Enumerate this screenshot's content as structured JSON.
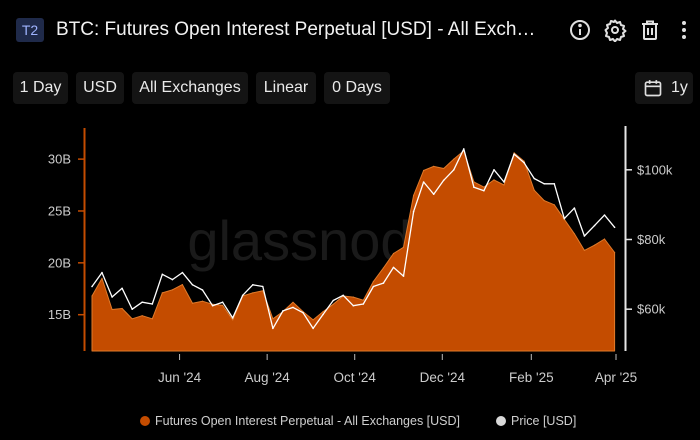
{
  "header": {
    "badge": "T2",
    "title": "BTC: Futures Open Interest Perpetual [USD] - All Exchanges",
    "icons": [
      "info-icon",
      "gear-icon",
      "trash-icon",
      "more-icon"
    ]
  },
  "toolbar": {
    "resolution": "1 Day",
    "currency": "USD",
    "exchange": "All Exchanges",
    "scale": "Linear",
    "sma": "0 Days",
    "range": "1y"
  },
  "watermark": "glassnode",
  "colors": {
    "oi": "#c44c00",
    "oi_edge": "#e07a2a",
    "price": "#ffffff",
    "bg": "#000000",
    "axis_text": "#cccccc"
  },
  "chart_data": {
    "type": "area",
    "title": "BTC: Futures Open Interest Perpetual [USD] - All Exchanges",
    "x_ticks": [
      "Jun '24",
      "Aug '24",
      "Oct '24",
      "Dec '24",
      "Feb '25",
      "Apr '25"
    ],
    "x_tick_dates": [
      "2024-06-01",
      "2024-08-01",
      "2024-10-01",
      "2024-12-01",
      "2025-02-01",
      "2025-04-01"
    ],
    "x_range": [
      "2024-04-01",
      "2025-04-01"
    ],
    "left_axis": {
      "ticks": [
        "15B",
        "20B",
        "25B",
        "30B"
      ],
      "tick_values": [
        15,
        20,
        25,
        30
      ],
      "range": [
        11.5,
        33
      ]
    },
    "right_axis": {
      "ticks": [
        "$60k",
        "$80k",
        "$100k"
      ],
      "tick_values": [
        60,
        80,
        100
      ],
      "range": [
        48,
        112
      ]
    },
    "grid": false,
    "legend_position": "bottom",
    "series": [
      {
        "name": "Futures Open Interest Perpetual - All Exchanges [USD]",
        "axis": "left",
        "unit": "B",
        "points": [
          [
            "2024-04-01",
            16.8
          ],
          [
            "2024-04-08",
            18.5
          ],
          [
            "2024-04-15",
            15.5
          ],
          [
            "2024-04-22",
            15.6
          ],
          [
            "2024-04-29",
            14.6
          ],
          [
            "2024-05-06",
            14.9
          ],
          [
            "2024-05-13",
            14.6
          ],
          [
            "2024-05-20",
            17.1
          ],
          [
            "2024-05-27",
            17.4
          ],
          [
            "2024-06-03",
            17.9
          ],
          [
            "2024-06-10",
            16.1
          ],
          [
            "2024-06-17",
            16.3
          ],
          [
            "2024-06-24",
            16.0
          ],
          [
            "2024-07-01",
            15.9
          ],
          [
            "2024-07-08",
            14.5
          ],
          [
            "2024-07-15",
            16.8
          ],
          [
            "2024-07-22",
            17.1
          ],
          [
            "2024-07-29",
            17.3
          ],
          [
            "2024-08-05",
            14.6
          ],
          [
            "2024-08-12",
            15.3
          ],
          [
            "2024-08-19",
            16.2
          ],
          [
            "2024-08-26",
            15.3
          ],
          [
            "2024-09-02",
            14.5
          ],
          [
            "2024-09-09",
            15.3
          ],
          [
            "2024-09-16",
            16.0
          ],
          [
            "2024-09-23",
            16.8
          ],
          [
            "2024-09-30",
            16.7
          ],
          [
            "2024-10-07",
            16.4
          ],
          [
            "2024-10-14",
            18.2
          ],
          [
            "2024-10-21",
            19.5
          ],
          [
            "2024-10-28",
            20.9
          ],
          [
            "2024-11-04",
            21.5
          ],
          [
            "2024-11-11",
            26.5
          ],
          [
            "2024-11-18",
            28.9
          ],
          [
            "2024-11-25",
            29.3
          ],
          [
            "2024-12-02",
            29.1
          ],
          [
            "2024-12-09",
            30.0
          ],
          [
            "2024-12-16",
            30.8
          ],
          [
            "2024-12-23",
            27.8
          ],
          [
            "2024-12-30",
            27.3
          ],
          [
            "2025-01-06",
            28.0
          ],
          [
            "2025-01-13",
            27.5
          ],
          [
            "2025-01-20",
            30.6
          ],
          [
            "2025-01-27",
            29.8
          ],
          [
            "2025-02-03",
            27.0
          ],
          [
            "2025-02-10",
            26.0
          ],
          [
            "2025-02-17",
            25.6
          ],
          [
            "2025-02-24",
            24.2
          ],
          [
            "2025-03-03",
            22.8
          ],
          [
            "2025-03-10",
            21.2
          ],
          [
            "2025-03-17",
            21.7
          ],
          [
            "2025-03-24",
            22.3
          ],
          [
            "2025-03-31",
            21.0
          ]
        ]
      },
      {
        "name": "Price [USD]",
        "axis": "right",
        "unit": "k USD",
        "points": [
          [
            "2024-04-01",
            66.5
          ],
          [
            "2024-04-08",
            70.5
          ],
          [
            "2024-04-15",
            63.5
          ],
          [
            "2024-04-22",
            66.0
          ],
          [
            "2024-04-29",
            60.0
          ],
          [
            "2024-05-06",
            62.0
          ],
          [
            "2024-05-13",
            61.5
          ],
          [
            "2024-05-20",
            70.0
          ],
          [
            "2024-05-27",
            68.5
          ],
          [
            "2024-06-03",
            70.5
          ],
          [
            "2024-06-10",
            67.0
          ],
          [
            "2024-06-17",
            65.5
          ],
          [
            "2024-06-24",
            61.0
          ],
          [
            "2024-07-01",
            62.0
          ],
          [
            "2024-07-08",
            57.5
          ],
          [
            "2024-07-15",
            64.0
          ],
          [
            "2024-07-22",
            67.0
          ],
          [
            "2024-07-29",
            66.5
          ],
          [
            "2024-08-05",
            54.5
          ],
          [
            "2024-08-12",
            59.5
          ],
          [
            "2024-08-19",
            60.5
          ],
          [
            "2024-08-26",
            59.0
          ],
          [
            "2024-09-02",
            54.5
          ],
          [
            "2024-09-09",
            58.5
          ],
          [
            "2024-09-16",
            62.5
          ],
          [
            "2024-09-23",
            64.0
          ],
          [
            "2024-09-30",
            61.0
          ],
          [
            "2024-10-07",
            61.5
          ],
          [
            "2024-10-14",
            66.5
          ],
          [
            "2024-10-21",
            67.5
          ],
          [
            "2024-10-28",
            72.0
          ],
          [
            "2024-11-04",
            69.5
          ],
          [
            "2024-11-11",
            88.0
          ],
          [
            "2024-11-18",
            96.5
          ],
          [
            "2024-11-25",
            93.0
          ],
          [
            "2024-12-02",
            97.0
          ],
          [
            "2024-12-09",
            100.0
          ],
          [
            "2024-12-16",
            106.0
          ],
          [
            "2024-12-23",
            95.0
          ],
          [
            "2024-12-30",
            94.0
          ],
          [
            "2025-01-06",
            100.0
          ],
          [
            "2025-01-13",
            96.5
          ],
          [
            "2025-01-20",
            104.5
          ],
          [
            "2025-01-27",
            102.0
          ],
          [
            "2025-02-03",
            97.5
          ],
          [
            "2025-02-10",
            96.0
          ],
          [
            "2025-02-17",
            96.0
          ],
          [
            "2025-02-24",
            86.0
          ],
          [
            "2025-03-03",
            89.0
          ],
          [
            "2025-03-10",
            81.0
          ],
          [
            "2025-03-17",
            84.0
          ],
          [
            "2025-03-24",
            87.0
          ],
          [
            "2025-03-31",
            83.5
          ]
        ]
      }
    ]
  },
  "legend": {
    "items": [
      {
        "label": "Futures Open Interest Perpetual - All Exchanges [USD]",
        "color": "#c44c00"
      },
      {
        "label": "Price [USD]",
        "color": "#d9d9d9"
      }
    ]
  }
}
